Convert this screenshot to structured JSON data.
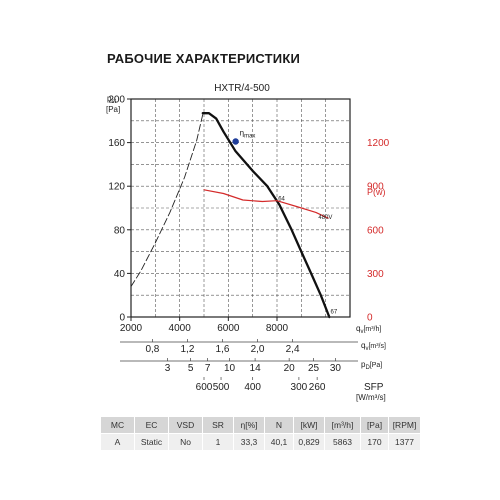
{
  "page_title": "РАБОЧИЕ ХАРАКТЕРИСТИКИ",
  "chart_data": {
    "type": "line",
    "title": "HXTR/4-500",
    "x_axis": {
      "label": "qv[m³/h]",
      "label_main": "q",
      "label_sub": "v",
      "label_unit": "[m³/h]",
      "range": [
        2000,
        11000
      ],
      "ticks": [
        2000,
        4000,
        6000,
        8000
      ]
    },
    "y_axis": {
      "label": "pst [Pa]",
      "label_main": "p",
      "label_sub": "st",
      "label_unit": "[Pa]",
      "range": [
        0,
        200
      ],
      "ticks": [
        0,
        40,
        80,
        120,
        160,
        200
      ]
    },
    "y2_axis": {
      "label": "P(w)",
      "range": [
        0,
        1500
      ],
      "ticks": [
        0,
        300,
        600,
        900,
        1200
      ],
      "color": "#d42a2a"
    },
    "grid": true,
    "series": [
      {
        "name": "",
        "axis": "y",
        "style": "dashed",
        "color": "#222222",
        "x": [
          2000,
          2400,
          3000,
          3600,
          4200,
          4700,
          4950
        ],
        "y": [
          28,
          42,
          68,
          96,
          128,
          162,
          186
        ]
      },
      {
        "name": "",
        "axis": "y",
        "style": "solid",
        "color": "#111111",
        "x": [
          4950,
          5200,
          5500,
          5800,
          6300,
          7000,
          7600,
          8100,
          8600,
          9000,
          9400,
          9800,
          10150
        ],
        "y": [
          187,
          187,
          182,
          170,
          152,
          134,
          120,
          103,
          80,
          60,
          40,
          20,
          0
        ]
      },
      {
        "name": "",
        "axis": "y2",
        "style": "solid",
        "color": "#d42a2a",
        "x": [
          5000,
          5800,
          6600,
          7400,
          8000,
          8800,
          9600,
          10100
        ],
        "y": [
          875,
          850,
          805,
          795,
          800,
          760,
          720,
          680
        ]
      }
    ],
    "annotations": [
      {
        "text": "ηmax",
        "text_main": "η",
        "text_sub": "max",
        "x": 6300,
        "y": 161,
        "marker": true,
        "marker_color": "#1f3d9a"
      },
      {
        "text": "64",
        "x": 8050,
        "y": 107
      },
      {
        "text": "480V",
        "x": 9700,
        "y": 90
      },
      {
        "text": "67",
        "x": 10200,
        "y": 3
      }
    ],
    "secondary_scales": [
      {
        "label": "qv[m³/s]",
        "label_main": "q",
        "label_sub": "v",
        "label_unit": "[m³/s]",
        "ticks": [
          {
            "label": "0,8",
            "x": 2880
          },
          {
            "label": "1,2",
            "x": 4320
          },
          {
            "label": "1,6",
            "x": 5760
          },
          {
            "label": "2,0",
            "x": 7200
          },
          {
            "label": "2,4",
            "x": 8640
          }
        ]
      },
      {
        "label": "pD[Pa]",
        "label_main": "p",
        "label_sub": "D",
        "label_unit": "[Pa]",
        "ticks": [
          {
            "label": "3",
            "x": 3500
          },
          {
            "label": "5",
            "x": 4450
          },
          {
            "label": "7",
            "x": 5150
          },
          {
            "label": "10",
            "x": 6050
          },
          {
            "label": "14",
            "x": 7100
          },
          {
            "label": "20",
            "x": 8500
          },
          {
            "label": "25",
            "x": 9500
          },
          {
            "label": "30",
            "x": 10400
          }
        ]
      },
      {
        "label": "SFP [W/m³/s]",
        "label_main": "SFP",
        "label_unit": "[W/m³/s]",
        "ticks": [
          {
            "label": "600",
            "x": 5000
          },
          {
            "label": "500",
            "x": 5700
          },
          {
            "label": "400",
            "x": 7000
          },
          {
            "label": "300",
            "x": 8900
          },
          {
            "label": "260",
            "x": 9650
          }
        ]
      }
    ]
  },
  "specs_table": {
    "headers": [
      "MC",
      "EC",
      "VSD",
      "SR",
      "η[%]",
      "N",
      "[kW]",
      "[m³/h]",
      "[Pa]",
      "[RPM]"
    ],
    "values": [
      "A",
      "Static",
      "No",
      "1",
      "33,3",
      "40,1",
      "0,829",
      "5863",
      "170",
      "1377"
    ]
  }
}
